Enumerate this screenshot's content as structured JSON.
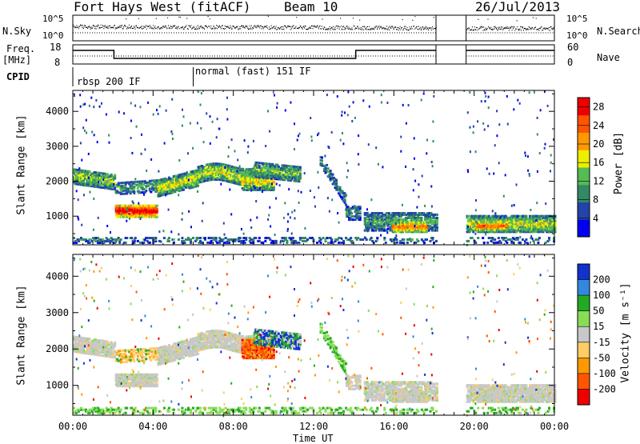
{
  "header": {
    "station": "Fort Hays West (fitACF)",
    "beam": "Beam 10",
    "date": "26/Jul/2013"
  },
  "top_panels": {
    "nsky_label": "N.Sky",
    "nsky_ticks": [
      "10^5",
      "10^0"
    ],
    "nsearch_label": "N.Search",
    "freq_label_1": "Freq.",
    "freq_label_2": "[MHz]",
    "freq_ticks": [
      "18",
      "8"
    ],
    "nave_label": "Nave",
    "nave_ticks": [
      "60",
      "0"
    ],
    "cpid_label": "CPID",
    "cpid_1": "rbsp 200 IF",
    "cpid_2": "normal (fast) 151 IF"
  },
  "chart_data": [
    {
      "type": "heatmap",
      "ylabel": "Slant Range [km]",
      "xlabel": "Time UT",
      "x_ticks": [
        "00:00",
        "04:00",
        "08:00",
        "12:00",
        "16:00",
        "20:00",
        "00:00"
      ],
      "xlim": [
        0,
        24
      ],
      "y_ticks": [
        1000,
        2000,
        3000,
        4000
      ],
      "ylim": [
        180,
        4600
      ],
      "colorbar_label": "Power [dB]",
      "colorbar_ticks": [
        28,
        24,
        20,
        16,
        12,
        8,
        4
      ],
      "colorbar_range": [
        0,
        30
      ],
      "colors": [
        "#0000ee",
        "#2244aa",
        "#338866",
        "#55bb55",
        "#eeee00",
        "#ff9900",
        "#ff5500",
        "#ee0000"
      ],
      "data_gap_hours": [
        18.1,
        19.6
      ]
    },
    {
      "type": "heatmap",
      "ylabel": "Slant Range [km]",
      "xlabel": "Time UT",
      "x_ticks": [
        "00:00",
        "04:00",
        "08:00",
        "12:00",
        "16:00",
        "20:00",
        "00:00"
      ],
      "xlim": [
        0,
        24
      ],
      "y_ticks": [
        1000,
        2000,
        3000,
        4000
      ],
      "ylim": [
        180,
        4600
      ],
      "colorbar_label": "Velocity [m s⁻¹]",
      "colorbar_ticks": [
        200,
        100,
        50,
        15,
        -15,
        -50,
        -100,
        -200
      ],
      "colors": [
        "#1133cc",
        "#3388dd",
        "#22aa22",
        "#88dd55",
        "#c8c8c8",
        "#ffcc66",
        "#ff9900",
        "#ff5500",
        "#ee0000"
      ],
      "data_gap_hours": [
        18.1,
        19.6
      ]
    }
  ]
}
